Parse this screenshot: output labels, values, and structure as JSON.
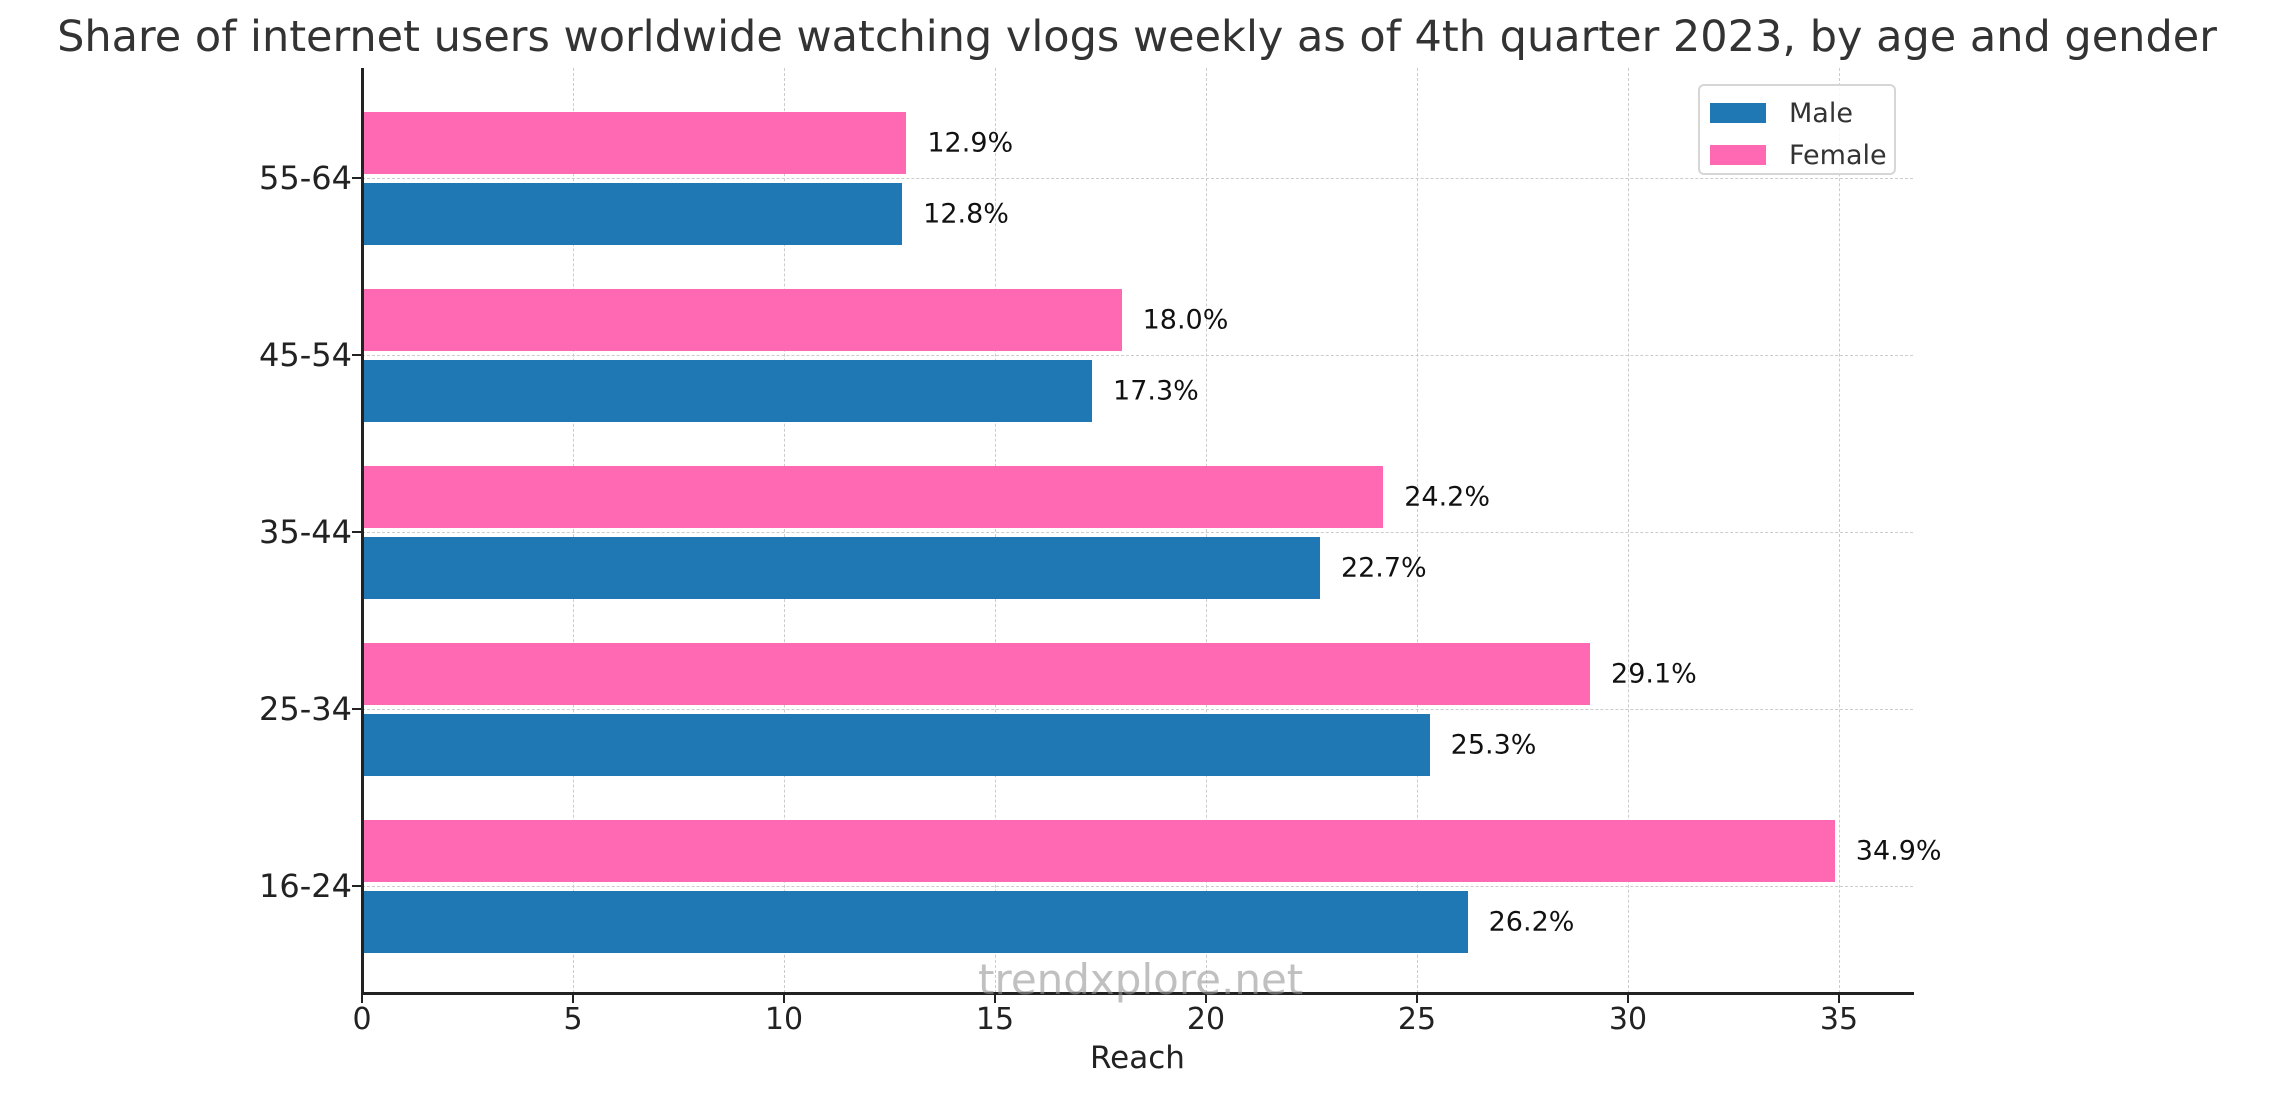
{
  "chart_data": {
    "type": "bar",
    "orientation": "horizontal",
    "title": "Share of internet users worldwide watching vlogs weekly as of 4th quarter 2023, by age and gender",
    "xlabel": "Reach",
    "ylabel": "",
    "categories": [
      "16-24",
      "25-34",
      "35-44",
      "45-54",
      "55-64"
    ],
    "series": [
      {
        "name": "Male",
        "color": "#1f77b4",
        "values": [
          26.2,
          25.3,
          22.7,
          17.3,
          12.8
        ],
        "labels": [
          "26.2%",
          "25.3%",
          "22.7%",
          "17.3%",
          "12.8%"
        ]
      },
      {
        "name": "Female",
        "color": "#ff69b4",
        "values": [
          34.9,
          29.1,
          24.2,
          18.0,
          12.9
        ],
        "labels": [
          "34.9%",
          "29.1%",
          "24.2%",
          "18.0%",
          "12.9%"
        ]
      }
    ],
    "xticks": [
      "0",
      "5",
      "10",
      "15",
      "20",
      "25",
      "30",
      "35"
    ],
    "xlim": [
      0,
      36.7
    ],
    "grid": true,
    "legend_position": "upper right",
    "watermark": "trendxplore.net"
  }
}
